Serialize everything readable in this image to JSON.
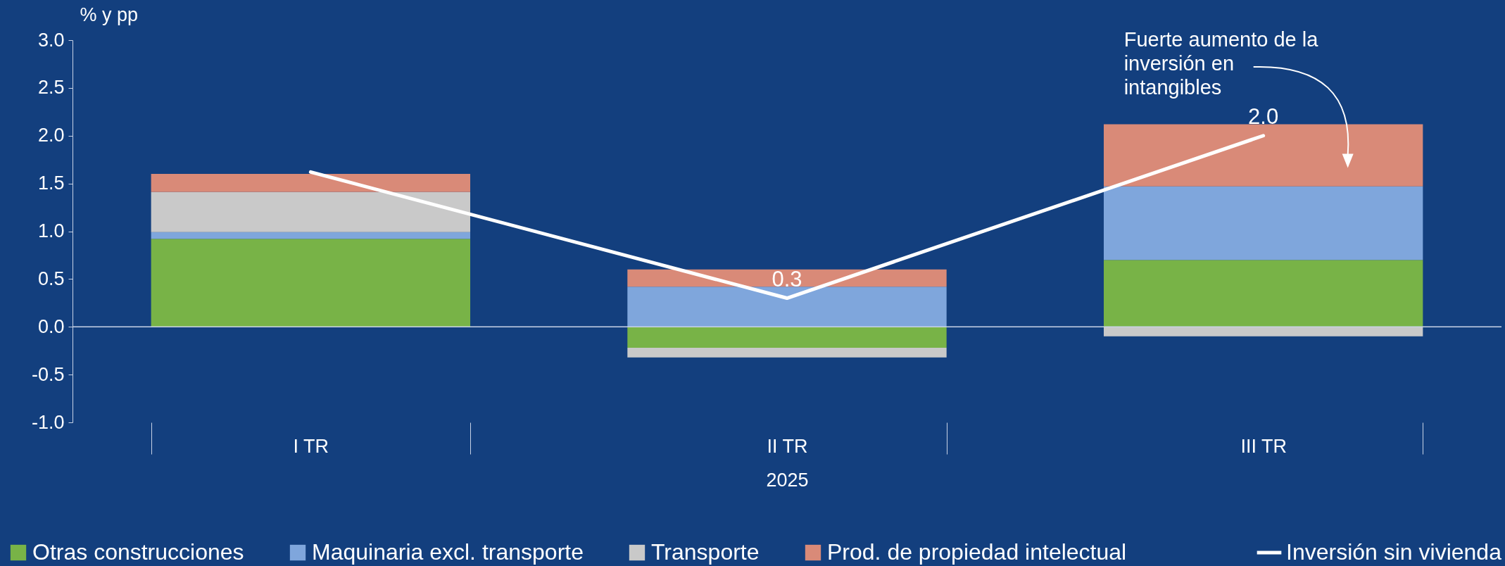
{
  "chart_data": {
    "type": "bar",
    "stacked": true,
    "ylabel": "% y pp",
    "xlabel": "2025",
    "categories": [
      "I TR",
      "II TR",
      "III TR"
    ],
    "series": [
      {
        "name": "Otras construcciones",
        "color": "#78b347",
        "values": [
          0.92,
          -0.22,
          0.7
        ]
      },
      {
        "name": "Maquinaria excl. transporte",
        "color": "#7fa6dc",
        "values": [
          0.07,
          0.42,
          0.77
        ]
      },
      {
        "name": "Transporte",
        "color": "#c9c9c9",
        "values": [
          0.42,
          -0.1,
          -0.1
        ]
      },
      {
        "name": "Prod. de propiedad intelectual",
        "color": "#d98a78",
        "values": [
          0.19,
          0.18,
          0.65
        ]
      },
      {
        "name": "Inversión sin vivienda",
        "type": "line",
        "color": "#ffffff",
        "values": [
          1.62,
          0.3,
          2.0
        ],
        "value_labels": [
          null,
          "0.3",
          "2.0"
        ]
      }
    ],
    "ylim": [
      -1.0,
      3.0
    ],
    "yticks": [
      {
        "value": -1,
        "label": "-1.0"
      },
      {
        "value": -0.5,
        "label": "-0.5"
      },
      {
        "value": 0,
        "label": "0.0"
      },
      {
        "value": 0.5,
        "label": "0.5"
      },
      {
        "value": 1,
        "label": "1.0"
      },
      {
        "value": 1.5,
        "label": "1.5"
      },
      {
        "value": 2,
        "label": "2.0"
      },
      {
        "value": 2.5,
        "label": "2.5"
      },
      {
        "value": 3,
        "label": "3.0"
      }
    ],
    "legend": "bottom",
    "annotations": [
      "Fuerte aumento de la inversión en intangibles"
    ]
  }
}
